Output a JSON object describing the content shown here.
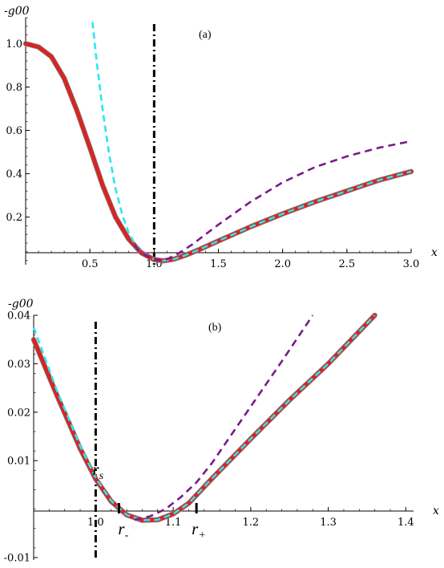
{
  "chart_data": [
    {
      "panel": "(a)",
      "type": "line",
      "ylabel": "-g00",
      "xlabel": "x",
      "xlim": [
        0,
        3.0
      ],
      "ylim": [
        -0.02,
        1.12
      ],
      "xticks": [
        0.5,
        1.0,
        1.5,
        2.0,
        2.5,
        3.0
      ],
      "xtick_labels": [
        "0.5",
        "1.0",
        "1.5",
        "2.0",
        "2.5",
        "3.0"
      ],
      "yticks": [
        0.2,
        0.4,
        0.6,
        0.8,
        1.0
      ],
      "ytick_labels": [
        "0.2",
        "0.4",
        "0.6",
        "0.8",
        "1.0"
      ],
      "vline_x": 1.0,
      "series": [
        {
          "color": "#d42626",
          "style": "solid-thick",
          "x": [
            0,
            0.1,
            0.2,
            0.3,
            0.4,
            0.5,
            0.6,
            0.7,
            0.8,
            0.9,
            1.0,
            1.07,
            1.15,
            1.25,
            1.35,
            1.5,
            1.75,
            2.0,
            2.25,
            2.5,
            2.75,
            3.0
          ],
          "y": [
            1.0,
            0.985,
            0.94,
            0.84,
            0.69,
            0.52,
            0.345,
            0.2,
            0.1,
            0.035,
            0.004,
            -0.002,
            0.005,
            0.025,
            0.05,
            0.09,
            0.155,
            0.215,
            0.27,
            0.32,
            0.37,
            0.41
          ]
        },
        {
          "color": "#2ce6f0",
          "style": "dashed",
          "x": [
            0.52,
            0.55,
            0.6,
            0.65,
            0.7,
            0.75,
            0.8,
            0.85,
            0.9,
            1.0,
            1.07,
            1.15,
            1.25,
            1.35,
            1.5,
            1.75,
            2.0,
            2.25,
            2.5,
            2.75,
            3.0
          ],
          "y": [
            1.1,
            0.93,
            0.69,
            0.49,
            0.33,
            0.215,
            0.13,
            0.075,
            0.038,
            0.004,
            -0.002,
            0.005,
            0.025,
            0.05,
            0.09,
            0.155,
            0.215,
            0.27,
            0.32,
            0.37,
            0.41
          ]
        },
        {
          "color": "#7b1a8c",
          "style": "dashed",
          "x": [
            0.85,
            0.9,
            1.0,
            1.05,
            1.1,
            1.2,
            1.3,
            1.5,
            1.75,
            2.0,
            2.25,
            2.5,
            2.75,
            3.0
          ],
          "y": [
            0.07,
            0.035,
            0.004,
            0.0,
            0.006,
            0.035,
            0.075,
            0.165,
            0.27,
            0.36,
            0.43,
            0.48,
            0.52,
            0.55
          ]
        }
      ]
    },
    {
      "panel": "(b)",
      "type": "line",
      "ylabel": "-g00",
      "xlabel": "x",
      "xlim": [
        0.92,
        1.41
      ],
      "ylim": [
        -0.0105,
        0.04
      ],
      "xticks": [
        1.0,
        1.1,
        1.2,
        1.3,
        1.4
      ],
      "xtick_labels": [
        "1.0",
        "1.1",
        "1.2",
        "1.3",
        "1.4"
      ],
      "yticks": [
        -0.01,
        0.01,
        0.02,
        0.03,
        0.04
      ],
      "ytick_labels": [
        "-0.01",
        "0.01",
        "0.02",
        "0.03",
        "0.04"
      ],
      "vline_x": 1.0,
      "annotations": [
        {
          "text": "r",
          "sub": "s",
          "x": 1.0
        },
        {
          "text": "r",
          "sub": "-",
          "x": 1.03
        },
        {
          "text": "r",
          "sub": "+",
          "x": 1.13
        }
      ],
      "series": [
        {
          "color": "#d42626",
          "style": "solid-thick",
          "x": [
            0.92,
            0.95,
            0.98,
            1.0,
            1.02,
            1.04,
            1.06,
            1.08,
            1.1,
            1.12,
            1.15,
            1.2,
            1.25,
            1.3,
            1.36
          ],
          "y": [
            0.035,
            0.0235,
            0.0125,
            0.0062,
            0.0016,
            -0.0012,
            -0.0023,
            -0.0022,
            -0.001,
            0.0012,
            0.0063,
            0.0145,
            0.0225,
            0.03,
            0.04
          ]
        },
        {
          "color": "#2ce6f0",
          "style": "dashed",
          "x": [
            0.92,
            0.95,
            0.98,
            1.0,
            1.02,
            1.04,
            1.06,
            1.08,
            1.1,
            1.12,
            1.15,
            1.2,
            1.25,
            1.3,
            1.36
          ],
          "y": [
            0.0375,
            0.0245,
            0.013,
            0.0064,
            0.0017,
            -0.0012,
            -0.0023,
            -0.0022,
            -0.001,
            0.0012,
            0.0063,
            0.0145,
            0.0225,
            0.03,
            0.04
          ]
        },
        {
          "color": "#7b1a8c",
          "style": "dashed",
          "x": [
            1.05,
            1.07,
            1.09,
            1.11,
            1.13,
            1.15,
            1.18,
            1.21,
            1.24,
            1.28
          ],
          "y": [
            -0.0022,
            -0.0015,
            0.0,
            0.0025,
            0.0055,
            0.0095,
            0.0165,
            0.0235,
            0.0305,
            0.04
          ]
        }
      ]
    }
  ]
}
